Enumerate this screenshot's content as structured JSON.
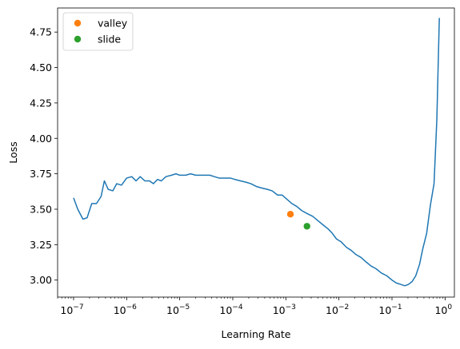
{
  "chart_data": {
    "type": "line",
    "title": "",
    "xlabel": "Learning Rate",
    "ylabel": "Loss",
    "xscale": "log",
    "xlim": [
      5e-08,
      1.5
    ],
    "ylim": [
      2.88,
      4.92
    ],
    "grid": false,
    "legend_position": "top-left",
    "x_ticks": [
      {
        "value": 1e-07,
        "base": "10",
        "exp": "−7"
      },
      {
        "value": 1e-06,
        "base": "10",
        "exp": "−6"
      },
      {
        "value": 1e-05,
        "base": "10",
        "exp": "−5"
      },
      {
        "value": 0.0001,
        "base": "10",
        "exp": "−4"
      },
      {
        "value": 0.001,
        "base": "10",
        "exp": "−3"
      },
      {
        "value": 0.01,
        "base": "10",
        "exp": "−2"
      },
      {
        "value": 0.1,
        "base": "10",
        "exp": "−1"
      },
      {
        "value": 1,
        "base": "10",
        "exp": "0"
      }
    ],
    "y_ticks": [
      {
        "value": 3.0,
        "label": "3.00"
      },
      {
        "value": 3.25,
        "label": "3.25"
      },
      {
        "value": 3.5,
        "label": "3.50"
      },
      {
        "value": 3.75,
        "label": "3.75"
      },
      {
        "value": 4.0,
        "label": "4.00"
      },
      {
        "value": 4.25,
        "label": "4.25"
      },
      {
        "value": 4.5,
        "label": "4.50"
      },
      {
        "value": 4.75,
        "label": "4.75"
      }
    ],
    "series": [
      {
        "color": "#1f77b4",
        "x": [
          1e-07,
          1.2e-07,
          1.5e-07,
          1.8e-07,
          2.2e-07,
          2.7e-07,
          3.3e-07,
          3.8e-07,
          4.5e-07,
          5.5e-07,
          6.5e-07,
          8e-07,
          1e-06,
          1.25e-06,
          1.5e-06,
          1.8e-06,
          2.2e-06,
          2.7e-06,
          3.2e-06,
          3.8e-06,
          4.5e-06,
          5.5e-06,
          7e-06,
          8.5e-06,
          1e-05,
          1.3e-05,
          1.6e-05,
          2e-05,
          2.5e-05,
          3e-05,
          3.7e-05,
          4.5e-05,
          5.5e-05,
          7e-05,
          9e-05,
          0.00011,
          0.00014,
          0.00018,
          0.00022,
          0.00028,
          0.00035,
          0.00045,
          0.00055,
          0.0007,
          0.00085,
          0.00105,
          0.0013,
          0.0016,
          0.002,
          0.0025,
          0.0032,
          0.004,
          0.005,
          0.0063,
          0.0075,
          0.009,
          0.011,
          0.014,
          0.017,
          0.021,
          0.026,
          0.032,
          0.04,
          0.05,
          0.063,
          0.08,
          0.1,
          0.12,
          0.145,
          0.175,
          0.205,
          0.24,
          0.28,
          0.33,
          0.38,
          0.45,
          0.53,
          0.62,
          0.7,
          0.78
        ],
        "y": [
          3.58,
          3.5,
          3.43,
          3.44,
          3.54,
          3.54,
          3.59,
          3.7,
          3.64,
          3.63,
          3.68,
          3.67,
          3.72,
          3.73,
          3.7,
          3.73,
          3.7,
          3.7,
          3.68,
          3.71,
          3.7,
          3.73,
          3.74,
          3.75,
          3.74,
          3.74,
          3.75,
          3.74,
          3.74,
          3.74,
          3.74,
          3.73,
          3.72,
          3.72,
          3.72,
          3.71,
          3.7,
          3.69,
          3.68,
          3.66,
          3.65,
          3.64,
          3.63,
          3.6,
          3.6,
          3.57,
          3.54,
          3.52,
          3.49,
          3.47,
          3.45,
          3.42,
          3.39,
          3.36,
          3.33,
          3.29,
          3.27,
          3.23,
          3.21,
          3.18,
          3.16,
          3.13,
          3.1,
          3.08,
          3.05,
          3.03,
          3.0,
          2.98,
          2.97,
          2.96,
          2.97,
          2.99,
          3.03,
          3.11,
          3.22,
          3.33,
          3.53,
          3.68,
          4.13,
          4.85
        ]
      }
    ],
    "markers": [
      {
        "name": "valley",
        "x": 0.00122,
        "y": 3.465,
        "color": "#ff7f0e"
      },
      {
        "name": "slide",
        "x": 0.0025,
        "y": 3.38,
        "color": "#2ca02c"
      }
    ]
  }
}
